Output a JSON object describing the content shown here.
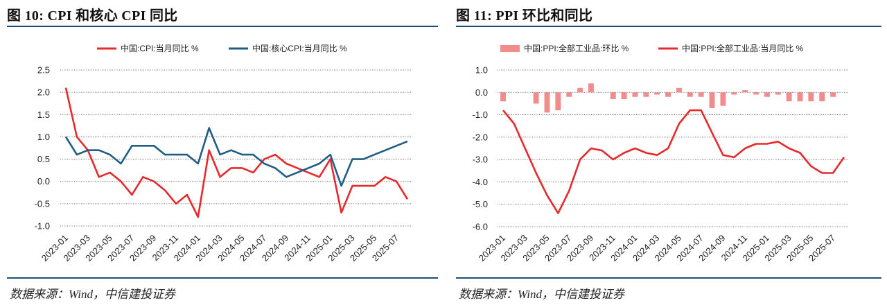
{
  "left": {
    "title": "图 10: CPI 和核心 CPI 同比",
    "source": "数据来源：Wind，中信建投证券"
  },
  "right": {
    "title": "图 11: PPI 环比和同比",
    "source": "数据来源：Wind，中信建投证券"
  },
  "chart_data": [
    {
      "type": "line",
      "title": "",
      "xlabel": "",
      "ylabel": "",
      "ylim": [
        -1.0,
        2.5
      ],
      "yticks": [
        -1.0,
        -0.5,
        0.0,
        0.5,
        1.0,
        1.5,
        2.0,
        2.5
      ],
      "ytick_labels": [
        "-1.0",
        "-0.5",
        "0.0",
        "0.5",
        "1.0",
        "1.5",
        "2.0",
        "2.5"
      ],
      "grid": "horizontal dashed",
      "legend": "top",
      "x": [
        "2023-01",
        "2023-02",
        "2023-03",
        "2023-04",
        "2023-05",
        "2023-06",
        "2023-07",
        "2023-08",
        "2023-09",
        "2023-10",
        "2023-11",
        "2023-12",
        "2024-01",
        "2024-02",
        "2024-03",
        "2024-04",
        "2024-05",
        "2024-06",
        "2024-07",
        "2024-08",
        "2024-09",
        "2024-10",
        "2024-11",
        "2024-12",
        "2025-01",
        "2025-02",
        "2025-03",
        "2025-04",
        "2025-05",
        "2025-06",
        "2025-07",
        "2025-08"
      ],
      "xtick_labels": [
        "2023-01",
        "2023-03",
        "2023-05",
        "2023-07",
        "2023-09",
        "2023-11",
        "2024-01",
        "2024-03",
        "2024-05",
        "2024-07",
        "2024-09",
        "2024-11",
        "2025-01",
        "2025-03",
        "2025-05",
        "2025-07"
      ],
      "series": [
        {
          "name": "中国:CPI:当月同比 %",
          "color": "#e8282b",
          "kind": "line",
          "values": [
            2.1,
            1.0,
            0.7,
            0.1,
            0.2,
            0.0,
            -0.3,
            0.1,
            0.0,
            -0.2,
            -0.5,
            -0.3,
            -0.8,
            0.7,
            0.1,
            0.3,
            0.3,
            0.2,
            0.5,
            0.6,
            0.4,
            0.3,
            0.2,
            0.1,
            0.5,
            -0.7,
            -0.1,
            -0.1,
            -0.1,
            0.1,
            0.0,
            -0.4
          ]
        },
        {
          "name": "中国:核心CPI:当月同比 %",
          "color": "#1f5c86",
          "kind": "line",
          "values": [
            1.0,
            0.6,
            0.7,
            0.7,
            0.6,
            0.4,
            0.8,
            0.8,
            0.8,
            0.6,
            0.6,
            0.6,
            0.4,
            1.2,
            0.6,
            0.7,
            0.6,
            0.6,
            0.4,
            0.3,
            0.1,
            0.2,
            0.3,
            0.4,
            0.6,
            -0.1,
            0.5,
            0.5,
            0.6,
            0.7,
            0.8,
            0.9
          ]
        }
      ]
    },
    {
      "type": "bar+line",
      "title": "",
      "xlabel": "",
      "ylabel": "",
      "ylim": [
        -6.0,
        1.0
      ],
      "yticks": [
        -6.0,
        -5.0,
        -4.0,
        -3.0,
        -2.0,
        -1.0,
        0.0,
        1.0
      ],
      "ytick_labels": [
        "-6.0",
        "-5.0",
        "-4.0",
        "-3.0",
        "-2.0",
        "-1.0",
        "0.0",
        "1.0"
      ],
      "grid": "horizontal dashed",
      "legend": "top",
      "x": [
        "2023-01",
        "2023-02",
        "2023-03",
        "2023-04",
        "2023-05",
        "2023-06",
        "2023-07",
        "2023-08",
        "2023-09",
        "2023-10",
        "2023-11",
        "2023-12",
        "2024-01",
        "2024-02",
        "2024-03",
        "2024-04",
        "2024-05",
        "2024-06",
        "2024-07",
        "2024-08",
        "2024-09",
        "2024-10",
        "2024-11",
        "2024-12",
        "2025-01",
        "2025-02",
        "2025-03",
        "2025-04",
        "2025-05",
        "2025-06",
        "2025-07",
        "2025-08"
      ],
      "xtick_labels": [
        "2023-01",
        "2023-03",
        "2023-05",
        "2023-07",
        "2023-09",
        "2023-11",
        "2024-01",
        "2024-03",
        "2024-05",
        "2024-07",
        "2024-09",
        "2024-11",
        "2025-01",
        "2025-03",
        "2025-05",
        "2025-07"
      ],
      "series": [
        {
          "name": "中国:PPI:全部工业品:环比 %",
          "color": "#f08c8c",
          "kind": "bar",
          "values": [
            -0.4,
            -0.0,
            0.0,
            -0.5,
            -0.9,
            -0.8,
            -0.2,
            0.2,
            0.4,
            0.0,
            -0.3,
            -0.3,
            -0.2,
            -0.2,
            -0.1,
            -0.2,
            0.2,
            -0.2,
            -0.2,
            -0.7,
            -0.6,
            -0.1,
            0.1,
            -0.1,
            -0.2,
            -0.1,
            -0.4,
            -0.4,
            -0.4,
            -0.4,
            -0.2,
            0.0
          ]
        },
        {
          "name": "中国:PPI:全部工业品:当月同比 %",
          "color": "#e8282b",
          "kind": "line",
          "values": [
            -0.8,
            -1.4,
            -2.5,
            -3.6,
            -4.6,
            -5.4,
            -4.4,
            -3.0,
            -2.5,
            -2.6,
            -3.0,
            -2.7,
            -2.5,
            -2.7,
            -2.8,
            -2.5,
            -1.4,
            -0.8,
            -0.8,
            -1.8,
            -2.8,
            -2.9,
            -2.5,
            -2.3,
            -2.3,
            -2.2,
            -2.5,
            -2.7,
            -3.3,
            -3.6,
            -3.6,
            -2.9
          ]
        }
      ]
    }
  ]
}
